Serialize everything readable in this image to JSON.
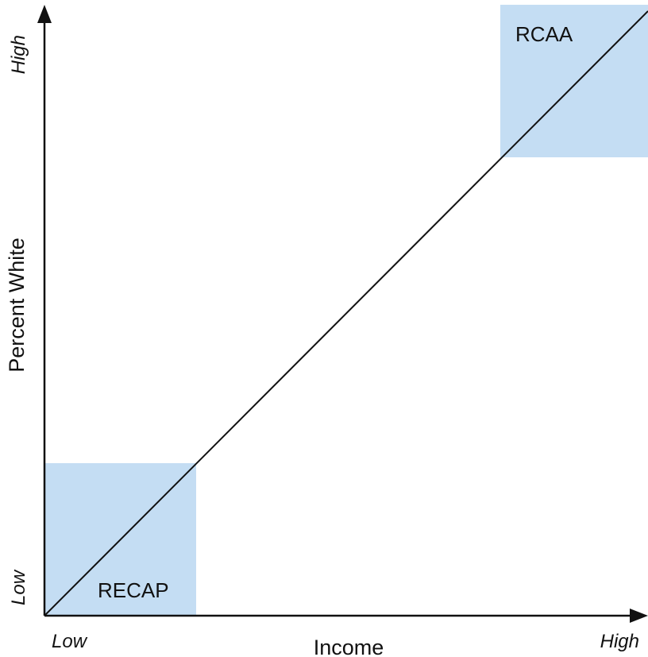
{
  "diagram": {
    "x_axis": {
      "title": "Income",
      "low_label": "Low",
      "high_label": "High"
    },
    "y_axis": {
      "title": "Percent White",
      "low_label": "Low",
      "high_label": "High"
    },
    "regions": [
      {
        "label": "RECAP",
        "corner": "low income, low percent white"
      },
      {
        "label": "RCAA",
        "corner": "high income, high percent white"
      }
    ],
    "diagonal": "from low-low corner to high-high corner"
  },
  "colors": {
    "region_fill": "#c4ddf3",
    "line": "#111111",
    "background": "#ffffff"
  }
}
